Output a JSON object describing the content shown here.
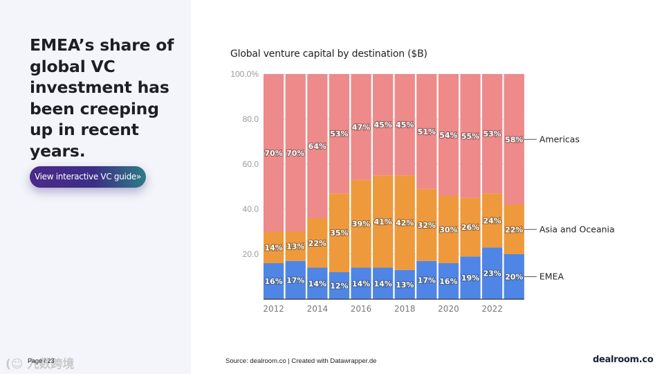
{
  "headline": "EMEA’s share of global VC investment has been creeping up in recent years.",
  "cta_label": "View interactive VC guide»",
  "page_label": "Page / 23",
  "watermark": "(☺ 九数跨境",
  "source": "Source: dealroom.co | Created with Datawrapper.de",
  "brand": "dealroom.co",
  "colors": {
    "americas": "#ee8a8a",
    "asia_oceania": "#ee9a3c",
    "emea": "#4f86e6",
    "grid": "#dcdcdc",
    "left_panel": "#f3f5fa"
  },
  "chart_data": {
    "type": "bar",
    "stacked": true,
    "title": "Global venture capital by destination ($B)",
    "categories": [
      "2012",
      "2013",
      "2014",
      "2015",
      "2016",
      "2017",
      "2018",
      "2019",
      "2020",
      "2021",
      "2022",
      "2023"
    ],
    "x_tick_labels": [
      "2012",
      "2014",
      "2016",
      "2018",
      "2020",
      "2022"
    ],
    "y_tick_labels": [
      "100.0%",
      "80.0",
      "60.0",
      "40.0",
      "20.0"
    ],
    "y_ticks": [
      100,
      80,
      60,
      40,
      20
    ],
    "ylim": [
      0,
      100
    ],
    "grid": true,
    "legend": "direct labels at right",
    "series": [
      {
        "name": "EMEA",
        "values": [
          16,
          17,
          14,
          12,
          14,
          14,
          13,
          17,
          16,
          19,
          23,
          20
        ],
        "labels": [
          "16%",
          "17%",
          "14%",
          "12%",
          "14%",
          "14%",
          "13%",
          "17%",
          "16%",
          "19%",
          "23%",
          "20%"
        ]
      },
      {
        "name": "Asia and Oceania",
        "values": [
          14,
          13,
          22,
          35,
          39,
          41,
          42,
          32,
          30,
          26,
          24,
          22
        ],
        "labels": [
          "14%",
          "13%",
          "22%",
          "35%",
          "39%",
          "41%",
          "42%",
          "32%",
          "30%",
          "26%",
          "24%",
          "22%"
        ]
      },
      {
        "name": "Americas",
        "values": [
          70,
          70,
          64,
          53,
          47,
          45,
          45,
          51,
          54,
          55,
          53,
          58
        ],
        "labels": [
          "70%",
          "70%",
          "64%",
          "53%",
          "47%",
          "45%",
          "45%",
          "51%",
          "54%",
          "55%",
          "53%",
          "58%"
        ]
      }
    ]
  }
}
